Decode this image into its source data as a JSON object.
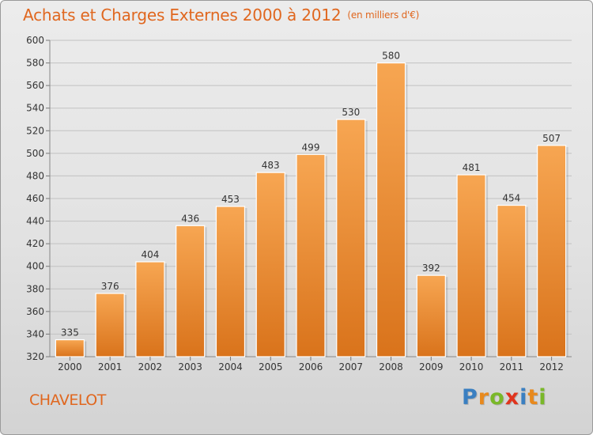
{
  "chart_data": {
    "type": "bar",
    "title": "Achats et Charges Externes 2000 à 2012",
    "subtitle": "(en milliers d'€)",
    "xlabel": "",
    "ylabel": "",
    "categories": [
      "2000",
      "2001",
      "2002",
      "2003",
      "2004",
      "2005",
      "2006",
      "2007",
      "2008",
      "2009",
      "2010",
      "2011",
      "2012"
    ],
    "values": [
      335,
      376,
      404,
      436,
      453,
      483,
      499,
      530,
      580,
      392,
      481,
      454,
      507
    ],
    "ylim": [
      320,
      600
    ],
    "yticks": [
      320,
      340,
      360,
      380,
      400,
      420,
      440,
      460,
      480,
      500,
      520,
      540,
      560,
      580,
      600
    ],
    "grid": true,
    "bar_color_top": "#f7a652",
    "bar_color_bottom": "#d9731b"
  },
  "footer": {
    "commune": "CHAVELOT",
    "brand_letters": [
      "P",
      "r",
      "o",
      "x",
      "i",
      "t",
      "i"
    ],
    "brand_colors": [
      "#3a7fc1",
      "#e8891d",
      "#7ab829",
      "#e0341d",
      "#3a7fc1",
      "#e8891d",
      "#7ab829"
    ]
  },
  "colors": {
    "accent": "#e0671f",
    "background": "#e4e4e4"
  }
}
